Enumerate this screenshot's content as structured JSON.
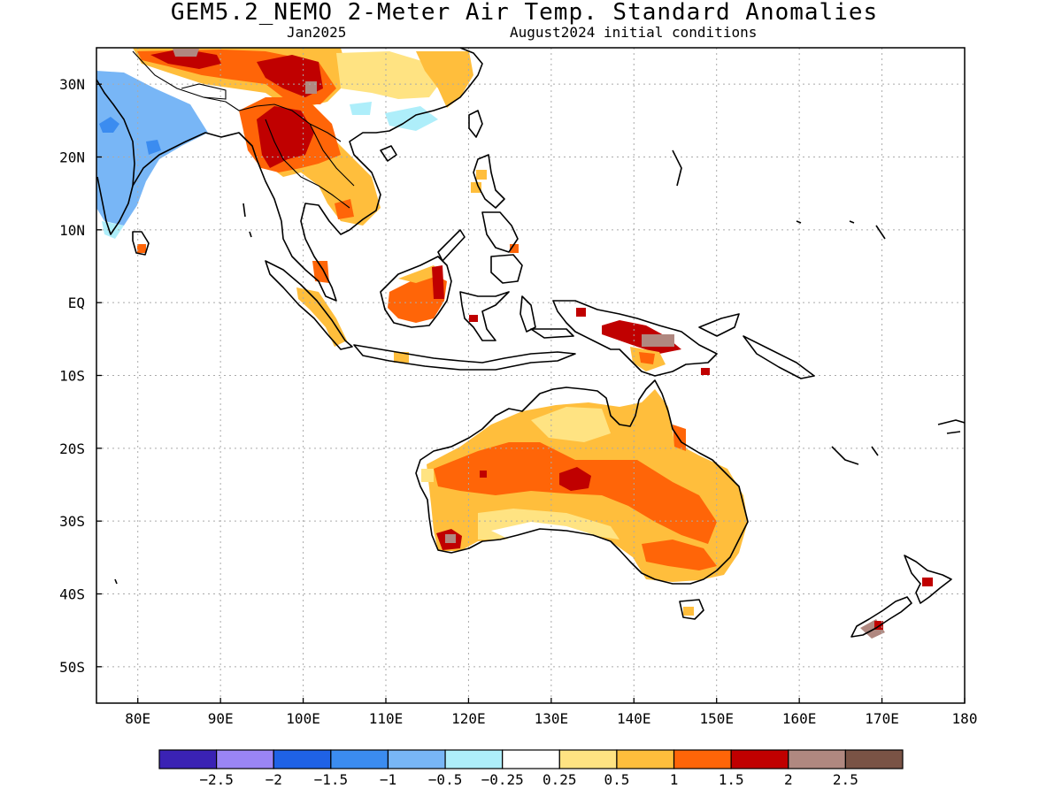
{
  "title": "GEM5.2_NEMO 2-Meter Air Temp. Standard Anomalies",
  "subtitle_left": "Jan2025",
  "subtitle_right": "August2024 initial conditions",
  "map": {
    "lon_range": [
      75,
      180
    ],
    "lat_range": [
      -55,
      35
    ],
    "lon_ticks": [
      {
        "value": 80,
        "label": "80E"
      },
      {
        "value": 90,
        "label": "90E"
      },
      {
        "value": 100,
        "label": "100E"
      },
      {
        "value": 110,
        "label": "110E"
      },
      {
        "value": 120,
        "label": "120E"
      },
      {
        "value": 130,
        "label": "130E"
      },
      {
        "value": 140,
        "label": "140E"
      },
      {
        "value": 150,
        "label": "150E"
      },
      {
        "value": 160,
        "label": "160E"
      },
      {
        "value": 170,
        "label": "170E"
      },
      {
        "value": 180,
        "label": "180"
      }
    ],
    "lat_ticks": [
      {
        "value": 30,
        "label": "30N"
      },
      {
        "value": 20,
        "label": "20N"
      },
      {
        "value": 10,
        "label": "10N"
      },
      {
        "value": 0,
        "label": "EQ"
      },
      {
        "value": -10,
        "label": "10S"
      },
      {
        "value": -20,
        "label": "20S"
      },
      {
        "value": -30,
        "label": "30S"
      },
      {
        "value": -40,
        "label": "40S"
      },
      {
        "value": -50,
        "label": "50S"
      }
    ],
    "gridlines": true
  },
  "colorbar": {
    "colors": [
      "#3a22b4",
      "#9a85f5",
      "#1f62e6",
      "#3b8cf0",
      "#78b6f6",
      "#aeeefa",
      "#ffffff",
      "#ffe382",
      "#ffbe3c",
      "#ff6508",
      "#c00000",
      "#b08880",
      "#7a5345"
    ],
    "labels": [
      "-2.5",
      "-2",
      "-1.5",
      "-1",
      "-0.5",
      "-0.25",
      "0.25",
      "0.5",
      "1",
      "1.5",
      "2",
      "2.5"
    ]
  },
  "colors": {
    "cold_moderate": "#78b6f6",
    "cold_strong": "#3b8cf0",
    "cold_weak": "#aeeefa",
    "warm_weak": "#ffe382",
    "warm_moderate": "#ffbe3c",
    "warm_strong": "#ff6508",
    "warm_very_strong": "#c00000",
    "warm_extreme": "#b08880"
  }
}
